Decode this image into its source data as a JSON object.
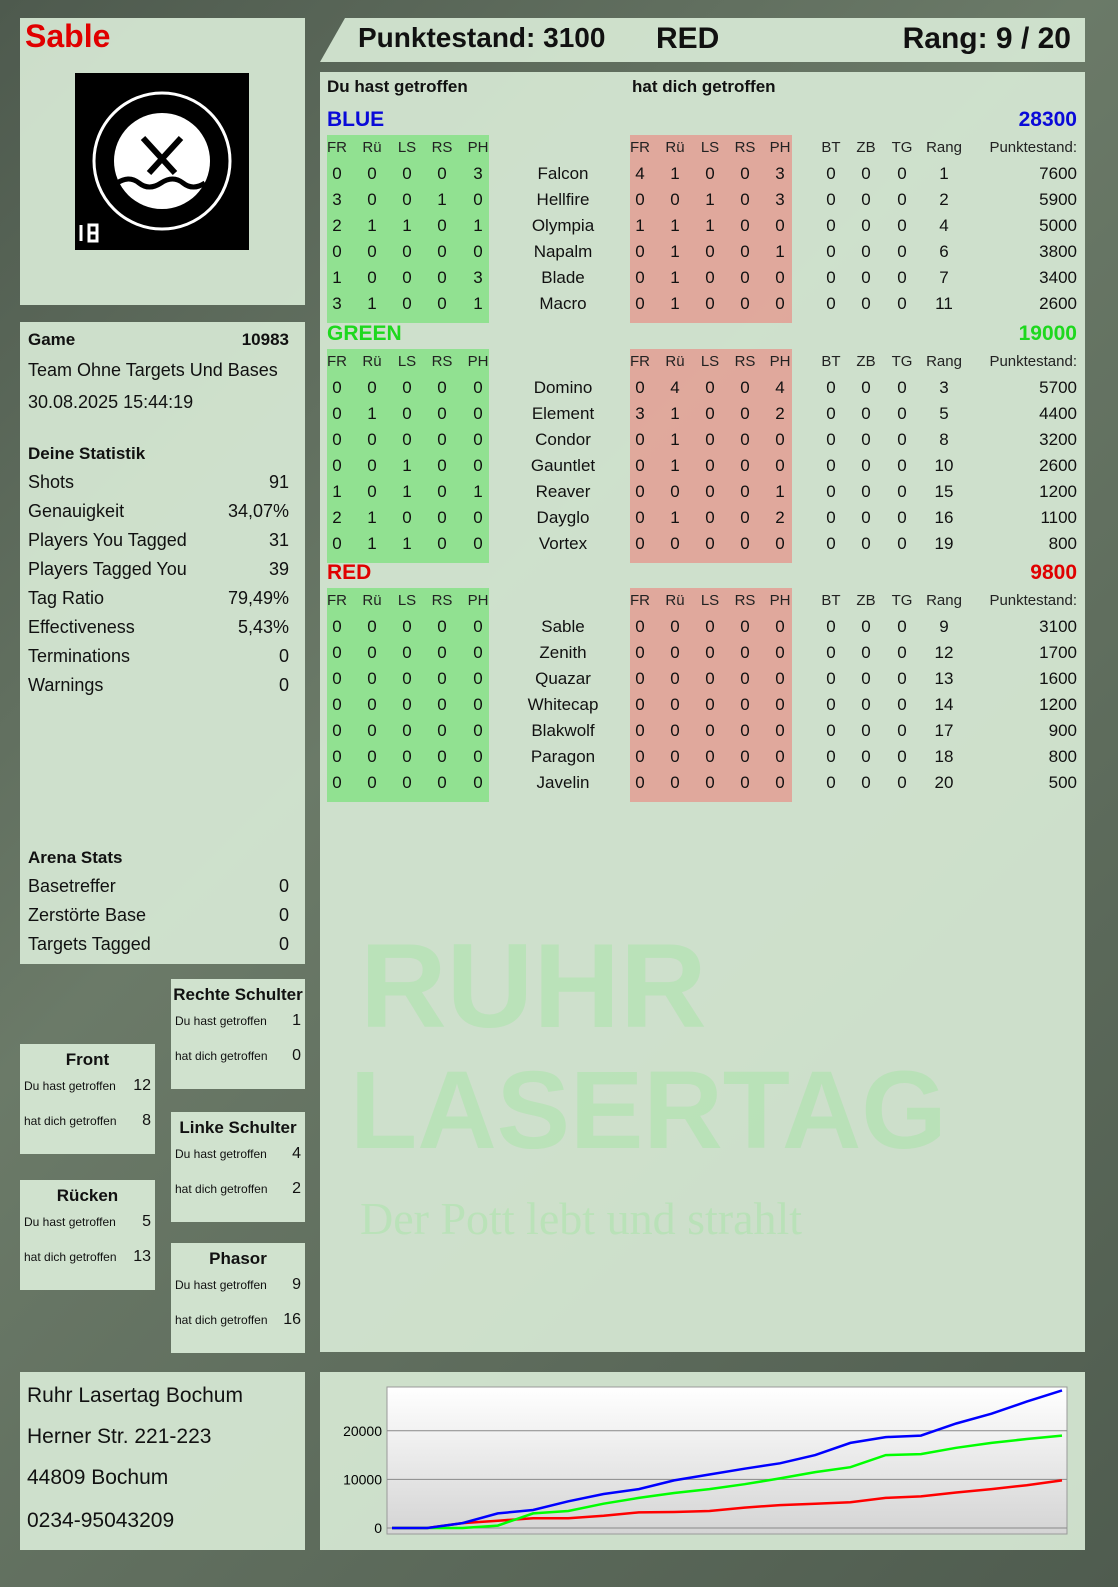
{
  "player": {
    "name": "Sable",
    "score_label": "Punktestand: 3100",
    "team": "RED",
    "rank_label": "Rang: 9 / 20",
    "logo_text": "RUHR LASERTAG 18"
  },
  "main": {
    "you_hit": "Du hast getroffen",
    "hit_you": "hat dich getroffen",
    "headers_left": [
      "FR",
      "Rü",
      "LS",
      "RS",
      "PH"
    ],
    "headers_right": [
      "FR",
      "Rü",
      "LS",
      "RS",
      "PH",
      "BT",
      "ZB",
      "TG",
      "Rang",
      "Punktestand:"
    ],
    "teams": [
      {
        "name": "BLUE",
        "score": "28300",
        "color": "#0a0ad8",
        "players": [
          {
            "n": "Falcon",
            "l": [
              0,
              0,
              0,
              0,
              3
            ],
            "r": [
              4,
              1,
              0,
              0,
              3,
              0,
              0,
              0,
              1,
              7600
            ]
          },
          {
            "n": "Hellfire",
            "l": [
              3,
              0,
              0,
              1,
              0
            ],
            "r": [
              0,
              0,
              1,
              0,
              3,
              0,
              0,
              0,
              2,
              5900
            ]
          },
          {
            "n": "Olympia",
            "l": [
              2,
              1,
              1,
              0,
              1
            ],
            "r": [
              1,
              1,
              1,
              0,
              0,
              0,
              0,
              0,
              4,
              5000
            ]
          },
          {
            "n": "Napalm",
            "l": [
              0,
              0,
              0,
              0,
              0
            ],
            "r": [
              0,
              1,
              0,
              0,
              1,
              0,
              0,
              0,
              6,
              3800
            ]
          },
          {
            "n": "Blade",
            "l": [
              1,
              0,
              0,
              0,
              3
            ],
            "r": [
              0,
              1,
              0,
              0,
              0,
              0,
              0,
              0,
              7,
              3400
            ]
          },
          {
            "n": "Macro",
            "l": [
              3,
              1,
              0,
              0,
              1
            ],
            "r": [
              0,
              1,
              0,
              0,
              0,
              0,
              0,
              0,
              11,
              2600
            ]
          }
        ]
      },
      {
        "name": "GREEN",
        "score": "19000",
        "color": "#1ed81e",
        "players": [
          {
            "n": "Domino",
            "l": [
              0,
              0,
              0,
              0,
              0
            ],
            "r": [
              0,
              4,
              0,
              0,
              4,
              0,
              0,
              0,
              3,
              5700
            ]
          },
          {
            "n": "Element",
            "l": [
              0,
              1,
              0,
              0,
              0
            ],
            "r": [
              3,
              1,
              0,
              0,
              2,
              0,
              0,
              0,
              5,
              4400
            ]
          },
          {
            "n": "Condor",
            "l": [
              0,
              0,
              0,
              0,
              0
            ],
            "r": [
              0,
              1,
              0,
              0,
              0,
              0,
              0,
              0,
              8,
              3200
            ]
          },
          {
            "n": "Gauntlet",
            "l": [
              0,
              0,
              1,
              0,
              0
            ],
            "r": [
              0,
              1,
              0,
              0,
              0,
              0,
              0,
              0,
              10,
              2600
            ]
          },
          {
            "n": "Reaver",
            "l": [
              1,
              0,
              1,
              0,
              1
            ],
            "r": [
              0,
              0,
              0,
              0,
              1,
              0,
              0,
              0,
              15,
              1200
            ]
          },
          {
            "n": "Dayglo",
            "l": [
              2,
              1,
              0,
              0,
              0
            ],
            "r": [
              0,
              1,
              0,
              0,
              2,
              0,
              0,
              0,
              16,
              1100
            ]
          },
          {
            "n": "Vortex",
            "l": [
              0,
              1,
              1,
              0,
              0
            ],
            "r": [
              0,
              0,
              0,
              0,
              0,
              0,
              0,
              0,
              19,
              800
            ]
          }
        ]
      },
      {
        "name": "RED",
        "score": "9800",
        "color": "#e00000",
        "players": [
          {
            "n": "Sable",
            "l": [
              0,
              0,
              0,
              0,
              0
            ],
            "r": [
              0,
              0,
              0,
              0,
              0,
              0,
              0,
              0,
              9,
              3100
            ]
          },
          {
            "n": "Zenith",
            "l": [
              0,
              0,
              0,
              0,
              0
            ],
            "r": [
              0,
              0,
              0,
              0,
              0,
              0,
              0,
              0,
              12,
              1700
            ]
          },
          {
            "n": "Quazar",
            "l": [
              0,
              0,
              0,
              0,
              0
            ],
            "r": [
              0,
              0,
              0,
              0,
              0,
              0,
              0,
              0,
              13,
              1600
            ]
          },
          {
            "n": "Whitecap",
            "l": [
              0,
              0,
              0,
              0,
              0
            ],
            "r": [
              0,
              0,
              0,
              0,
              0,
              0,
              0,
              0,
              14,
              1200
            ]
          },
          {
            "n": "Blakwolf",
            "l": [
              0,
              0,
              0,
              0,
              0
            ],
            "r": [
              0,
              0,
              0,
              0,
              0,
              0,
              0,
              0,
              17,
              900
            ]
          },
          {
            "n": "Paragon",
            "l": [
              0,
              0,
              0,
              0,
              0
            ],
            "r": [
              0,
              0,
              0,
              0,
              0,
              0,
              0,
              0,
              18,
              800
            ]
          },
          {
            "n": "Javelin",
            "l": [
              0,
              0,
              0,
              0,
              0
            ],
            "r": [
              0,
              0,
              0,
              0,
              0,
              0,
              0,
              0,
              20,
              500
            ]
          }
        ]
      }
    ]
  },
  "game": {
    "label": "Game",
    "id": "10983",
    "mode": "Team Ohne Targets Und Bases",
    "datetime": "30.08.2025 15:44:19"
  },
  "stats": {
    "title": "Deine Statistik",
    "items": [
      {
        "k": "Shots",
        "v": "91"
      },
      {
        "k": "Genauigkeit",
        "v": "34,07%"
      },
      {
        "k": "Players You Tagged",
        "v": "31"
      },
      {
        "k": "Players Tagged You",
        "v": "39"
      },
      {
        "k": "Tag Ratio",
        "v": "79,49%"
      },
      {
        "k": "Effectiveness",
        "v": "5,43%"
      },
      {
        "k": "Terminations",
        "v": "0"
      },
      {
        "k": "Warnings",
        "v": "0"
      }
    ]
  },
  "arena": {
    "title": "Arena Stats",
    "items": [
      {
        "k": "Basetreffer",
        "v": "0"
      },
      {
        "k": "Zerstörte Base",
        "v": "0"
      },
      {
        "k": "Targets Tagged",
        "v": "0"
      }
    ]
  },
  "zones": [
    {
      "title": "Rechte Schulter",
      "a_label": "Du hast getroffen",
      "a": "1",
      "b_label": "hat dich getroffen",
      "b": "0"
    },
    {
      "title": "Front",
      "a_label": "Du hast getroffen",
      "a": "12",
      "b_label": "hat dich getroffen",
      "b": "8"
    },
    {
      "title": "Linke Schulter",
      "a_label": "Du hast getroffen",
      "a": "4",
      "b_label": "hat dich getroffen",
      "b": "2"
    },
    {
      "title": "Rücken",
      "a_label": "Du hast getroffen",
      "a": "5",
      "b_label": "hat dich getroffen",
      "b": "13"
    },
    {
      "title": "Phasor",
      "a_label": "Du hast getroffen",
      "a": "9",
      "b_label": "hat dich getroffen",
      "b": "16"
    }
  ],
  "address": {
    "l1": "Ruhr Lasertag Bochum",
    "l2": "Herner Str. 221-223",
    "l3": "44809 Bochum",
    "l4": "0234-95043209"
  },
  "watermark": {
    "l1": "RUHR",
    "l2": "LASERTAG",
    "l3": "Der Pott lebt und strahlt"
  },
  "chart_data": {
    "type": "line",
    "ylim": [
      0,
      29000
    ],
    "yticks": [
      "0",
      "10000",
      "20000"
    ],
    "grid": true,
    "series": [
      {
        "color": "#0000ff",
        "values": [
          0,
          0,
          1000,
          3000,
          3700,
          5500,
          7000,
          8000,
          9800,
          11000,
          12200,
          13300,
          15000,
          17500,
          18700,
          19000,
          21500,
          23500,
          26000,
          28300
        ]
      },
      {
        "color": "#00ff00",
        "values": [
          0,
          0,
          0,
          500,
          3000,
          3500,
          5000,
          6200,
          7200,
          8000,
          9000,
          10200,
          11500,
          12500,
          15000,
          15200,
          16500,
          17500,
          18300,
          19000
        ]
      },
      {
        "color": "#ff0000",
        "values": [
          0,
          0,
          1000,
          1500,
          2000,
          2000,
          2500,
          3200,
          3300,
          3500,
          4200,
          4700,
          5000,
          5300,
          6200,
          6500,
          7300,
          8000,
          8800,
          9800
        ]
      }
    ]
  }
}
